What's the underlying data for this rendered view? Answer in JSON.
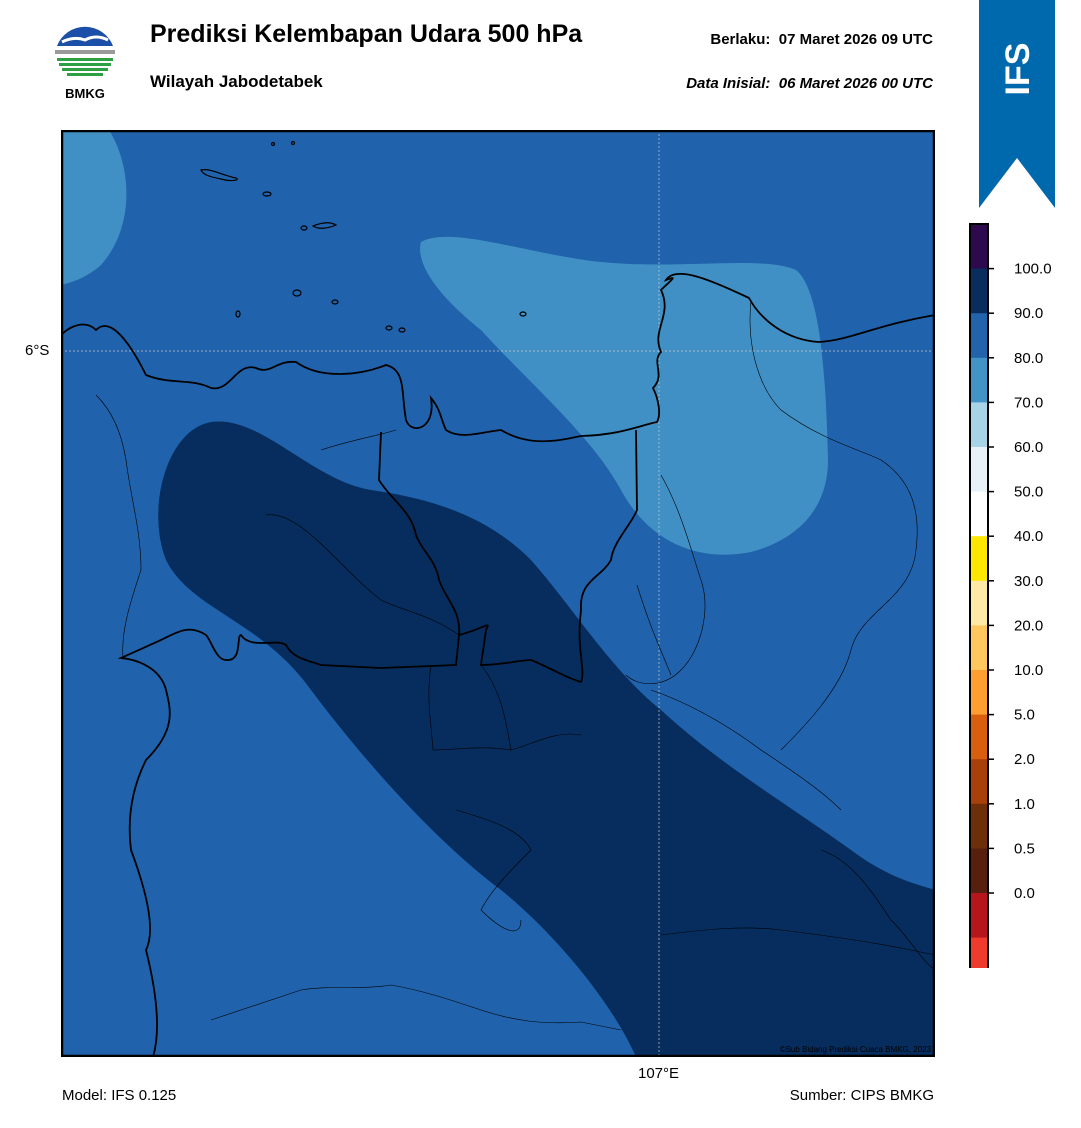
{
  "header": {
    "logo_text": "BMKG",
    "title": "Prediksi Kelembapan Udara 500 hPa",
    "subtitle": "Wilayah Jabodetabek",
    "valid_label": "Berlaku:",
    "valid_time": "07 Maret 2026 09 UTC",
    "init_label": "Data Inisial:",
    "init_time": "06 Maret 2026 00 UTC"
  },
  "badge": {
    "text": "IFS",
    "color": "#0068ac"
  },
  "map": {
    "lat_label": "6°S",
    "lon_label": "107°E",
    "credit": "©Sub Bidang Prediksi Cuaca BMKG, 2023",
    "fill_colors": {
      "humidity_80_90": "#2063ac",
      "humidity_70_80": "#4190c5",
      "humidity_90_100": "#062d5e"
    }
  },
  "footer": {
    "model": "Model: IFS 0.125",
    "source": "Sumber: CIPS BMKG"
  },
  "colorbar": {
    "labels": [
      "100.0",
      "90.0",
      "80.0",
      "70.0",
      "60.0",
      "50.0",
      "40.0",
      "30.0",
      "20.0",
      "10.0",
      "5.0",
      "2.0",
      "1.0",
      "0.5",
      "0.0"
    ],
    "colors": [
      "#2d0a4e",
      "#082d5e",
      "#2263ab",
      "#4293c6",
      "#a6d4e6",
      "#e6f2f8",
      "#ffffff",
      "#ffe600",
      "#ffe9a6",
      "#ffc75e",
      "#ff9f32",
      "#d95f0e",
      "#a8400a",
      "#6d2e0a",
      "#57200e",
      "#b5151b",
      "#ee3b2e"
    ]
  }
}
